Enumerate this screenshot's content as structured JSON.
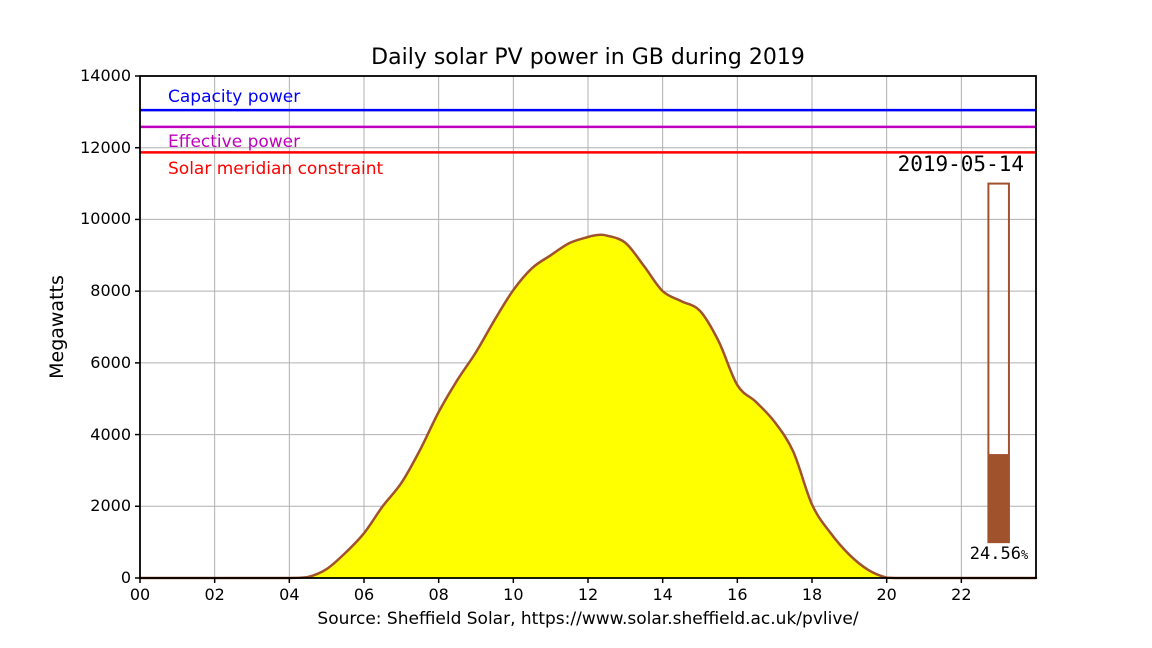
{
  "chart_data": {
    "type": "area",
    "title": "Daily solar PV power in GB during 2019",
    "ylabel": "Megawatts",
    "xlabel": "Source: Sheffield Solar, https://www.solar.sheffield.ac.uk/pvlive/",
    "xlim": [
      0,
      24
    ],
    "ylim": [
      0,
      14000
    ],
    "grid": true,
    "xticks": {
      "values": [
        0,
        2,
        4,
        6,
        8,
        10,
        12,
        14,
        16,
        18,
        20,
        22
      ],
      "labels": [
        "00",
        "02",
        "04",
        "06",
        "08",
        "10",
        "12",
        "14",
        "16",
        "18",
        "20",
        "22"
      ]
    },
    "yticks": {
      "values": [
        0,
        2000,
        4000,
        6000,
        8000,
        10000,
        12000,
        14000
      ],
      "labels": [
        "0",
        "2000",
        "4000",
        "6000",
        "8000",
        "10000",
        "12000",
        "14000"
      ]
    },
    "series": {
      "x": [
        0,
        1,
        2,
        3,
        4,
        4.5,
        5,
        5.5,
        6,
        6.5,
        7,
        7.5,
        8,
        8.5,
        9,
        9.5,
        10,
        10.5,
        11,
        11.5,
        12,
        12.25,
        12.5,
        13,
        13.5,
        14,
        14.5,
        15,
        15.5,
        16,
        16.5,
        17,
        17.5,
        18,
        18.5,
        19,
        19.5,
        20,
        20.3,
        21,
        22,
        23,
        24
      ],
      "y": [
        0,
        0,
        0,
        0,
        0,
        30,
        250,
        700,
        1250,
        2000,
        2650,
        3570,
        4630,
        5520,
        6300,
        7200,
        8030,
        8640,
        9000,
        9340,
        9510,
        9565,
        9550,
        9350,
        8700,
        8000,
        7720,
        7450,
        6600,
        5380,
        4910,
        4350,
        3520,
        2050,
        1250,
        650,
        230,
        10,
        0,
        0,
        0,
        0,
        0
      ],
      "line_color": "#A0522D",
      "fill_color": "#FFFF00",
      "peak_mw": 9565
    },
    "reference_lines": [
      {
        "label": "Capacity power",
        "value": 13050,
        "color": "#0000FF"
      },
      {
        "label": "Effective power",
        "value": 12580,
        "color": "#BF00BF"
      },
      {
        "label": "Solar meridian constraint",
        "value": 11870,
        "color": "#FF0000"
      }
    ],
    "gauge": {
      "date": "2019-05-14",
      "percent": 24.56,
      "percent_label": "24.56",
      "percent_suffix": "%",
      "range_mw": [
        1000,
        11000
      ],
      "hour": 23.0,
      "width_hours": 0.55,
      "color": "#A0522D"
    },
    "colors": {
      "grid": "#B0B0B0",
      "spine": "#000000",
      "background": "#FFFFFF"
    }
  }
}
